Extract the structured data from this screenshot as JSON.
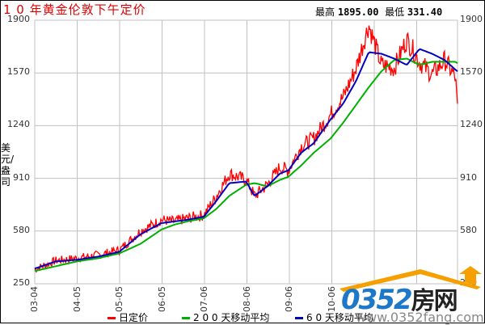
{
  "title": "1 0 年黄金伦敦下午定价",
  "stats": {
    "high_label": "最高",
    "high_value": "1895.00",
    "low_label": "最低",
    "low_value": "331.40"
  },
  "y_unit": "美元/盎司",
  "legend": [
    {
      "label": "日定价",
      "color": "#ff0000"
    },
    {
      "label": "2 0 0 天移动平均",
      "color": "#00b000"
    },
    {
      "label": "6 0 天移动平均",
      "color": "#0000c0"
    }
  ],
  "watermark": {
    "logo": "0352",
    "logo_cn": "房网",
    "url": "www.0352fang.com"
  },
  "chart_data": {
    "type": "line",
    "title": "10年黄金伦敦下午定价",
    "ylabel": "美元/盎司",
    "xlabel": "",
    "ylim": [
      250,
      1900
    ],
    "yticks": [
      250,
      580,
      910,
      1240,
      1570,
      1900
    ],
    "xticks": [
      "03-04",
      "04-05",
      "05-05",
      "06-05",
      "07-06",
      "08-06",
      "09-06",
      "10-06"
    ],
    "grid": true,
    "legend_position": "bottom",
    "annotations": [
      "最高 1895.00",
      "最低 331.40"
    ],
    "x": [
      0,
      0.5,
      1,
      1.5,
      2,
      2.5,
      3,
      3.3,
      3.6,
      4,
      4.3,
      4.6,
      5,
      5.2,
      5.5,
      5.8,
      6,
      6.3,
      6.6,
      7,
      7.3,
      7.6,
      7.9,
      8.2,
      8.5,
      8.8,
      9.1,
      9.4,
      9.7,
      9.95,
      10.0
    ],
    "series": [
      {
        "name": "日定价",
        "values": [
          340,
          395,
          410,
          430,
          460,
          580,
          650,
          640,
          660,
          680,
          800,
          940,
          900,
          800,
          870,
          980,
          960,
          1110,
          1160,
          1310,
          1420,
          1600,
          1870,
          1620,
          1600,
          1780,
          1640,
          1560,
          1650,
          1540,
          1340
        ]
      },
      {
        "name": "200天移动平均",
        "values": [
          330,
          360,
          390,
          410,
          440,
          500,
          590,
          620,
          640,
          660,
          720,
          800,
          870,
          880,
          860,
          900,
          920,
          990,
          1070,
          1160,
          1260,
          1370,
          1480,
          1580,
          1650,
          1660,
          1620,
          1640,
          1640,
          1640,
          1630
        ]
      },
      {
        "name": "60天移动平均",
        "values": [
          345,
          390,
          400,
          420,
          450,
          560,
          630,
          640,
          650,
          670,
          770,
          880,
          890,
          800,
          860,
          940,
          960,
          1070,
          1130,
          1280,
          1380,
          1520,
          1700,
          1690,
          1660,
          1620,
          1720,
          1690,
          1650,
          1590,
          1580
        ]
      }
    ]
  }
}
